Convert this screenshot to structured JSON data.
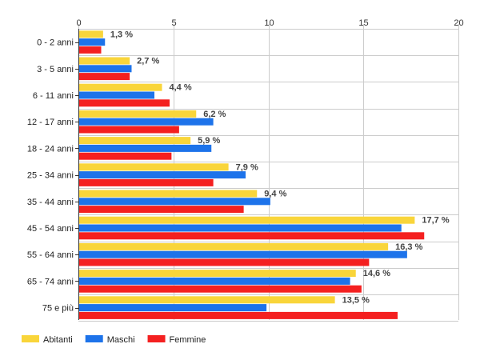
{
  "chart_data": {
    "type": "bar",
    "orientation": "horizontal",
    "categories": [
      "0 - 2 anni",
      "3 - 5 anni",
      "6 - 11 anni",
      "12 - 17 anni",
      "18 - 24 anni",
      "25 - 34 anni",
      "35 - 44 anni",
      "45 - 54 anni",
      "55 - 64 anni",
      "65 - 74 anni",
      "75 e più"
    ],
    "series": [
      {
        "name": "Abitanti",
        "color": "#f9d53a",
        "values": [
          1.3,
          2.7,
          4.4,
          6.2,
          5.9,
          7.9,
          9.4,
          17.7,
          16.3,
          14.6,
          13.5
        ]
      },
      {
        "name": "Maschi",
        "color": "#1d73ea",
        "values": [
          1.4,
          2.8,
          4.0,
          7.1,
          7.0,
          8.8,
          10.1,
          17.0,
          17.3,
          14.3,
          9.9
        ]
      },
      {
        "name": "Femmine",
        "color": "#f42020",
        "values": [
          1.2,
          2.7,
          4.8,
          5.3,
          4.9,
          7.1,
          8.7,
          18.2,
          15.3,
          14.9,
          16.8
        ]
      }
    ],
    "data_labels": [
      "1,3 %",
      "2,7 %",
      "4,4 %",
      "6,2 %",
      "5,9 %",
      "7,9 %",
      "9,4 %",
      "17,7 %",
      "16,3 %",
      "14,6 %",
      "13,5 %"
    ],
    "xlim": [
      0,
      20
    ],
    "xticks": [
      0,
      5,
      10,
      15,
      20
    ],
    "xtick_labels": [
      "0",
      "5",
      "10",
      "15",
      "20"
    ],
    "title": "",
    "xlabel": "",
    "ylabel": "",
    "grid": true,
    "legend_position": "bottom-left"
  }
}
